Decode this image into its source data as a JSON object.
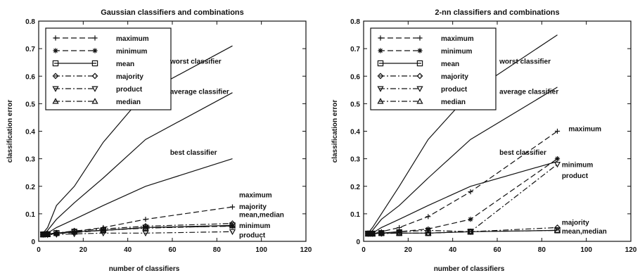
{
  "chart_data": [
    {
      "type": "line",
      "title": "Gaussian classifiers and combinations",
      "xlabel": "number of classifiers",
      "ylabel": "classification error",
      "xlim": [
        0,
        120
      ],
      "ylim": [
        0,
        0.8
      ],
      "xticks": [
        "0",
        "20",
        "40",
        "60",
        "80",
        "100",
        "120"
      ],
      "yticks": [
        "0",
        "0.1",
        "0.2",
        "0.3",
        "0.4",
        "0.5",
        "0.6",
        "0.7",
        "0.8"
      ],
      "grid": false,
      "legend_position": "top-left",
      "legend": [
        {
          "label": "maximum",
          "marker": "plus",
          "dash": "long"
        },
        {
          "label": "minimum",
          "marker": "star",
          "dash": "long"
        },
        {
          "label": "mean",
          "marker": "square",
          "dash": "solid"
        },
        {
          "label": "majority",
          "marker": "diamond",
          "dash": "dashdot"
        },
        {
          "label": "product",
          "marker": "tri-down",
          "dash": "dashdot"
        },
        {
          "label": "median",
          "marker": "tri-up",
          "dash": "dashdot"
        }
      ],
      "series": [
        {
          "marker": "none",
          "dash": "solid",
          "x": [
            2,
            4,
            8,
            16,
            29,
            48,
            87
          ],
          "y": [
            0.03,
            0.05,
            0.13,
            0.2,
            0.36,
            0.54,
            0.71
          ]
        },
        {
          "marker": "none",
          "dash": "solid",
          "x": [
            2,
            4,
            8,
            16,
            29,
            48,
            87
          ],
          "y": [
            0.025,
            0.04,
            0.08,
            0.14,
            0.23,
            0.37,
            0.54
          ]
        },
        {
          "marker": "none",
          "dash": "solid",
          "x": [
            2,
            4,
            8,
            16,
            29,
            48,
            87
          ],
          "y": [
            0.02,
            0.03,
            0.05,
            0.08,
            0.13,
            0.2,
            0.3
          ]
        },
        {
          "marker": "plus",
          "dash": "long",
          "x": [
            2,
            4,
            8,
            16,
            29,
            48,
            87
          ],
          "y": [
            0.027,
            0.028,
            0.03,
            0.036,
            0.05,
            0.08,
            0.125
          ]
        },
        {
          "marker": "star",
          "dash": "long",
          "x": [
            2,
            4,
            8,
            16,
            29,
            48,
            87
          ],
          "y": [
            0.026,
            0.025,
            0.028,
            0.032,
            0.04,
            0.05,
            0.055
          ]
        },
        {
          "marker": "square",
          "dash": "solid",
          "x": [
            2,
            4,
            8,
            16,
            29,
            48,
            87
          ],
          "y": [
            0.025,
            0.026,
            0.03,
            0.035,
            0.04,
            0.05,
            0.058
          ]
        },
        {
          "marker": "diamond",
          "dash": "dashdot",
          "x": [
            2,
            4,
            8,
            16,
            29,
            48,
            87
          ],
          "y": [
            0.025,
            0.027,
            0.03,
            0.038,
            0.045,
            0.055,
            0.065
          ]
        },
        {
          "marker": "tri-down",
          "dash": "dashdot",
          "x": [
            2,
            4,
            8,
            16,
            29,
            48,
            87
          ],
          "y": [
            0.025,
            0.024,
            0.025,
            0.027,
            0.03,
            0.03,
            0.035
          ]
        },
        {
          "marker": "tri-up",
          "dash": "dashdot",
          "x": [
            2,
            4,
            8,
            16,
            29,
            48,
            87
          ],
          "y": [
            0.025,
            0.026,
            0.03,
            0.034,
            0.04,
            0.048,
            0.056
          ]
        }
      ],
      "annotations": [
        {
          "text": "worst classifier",
          "x": 59,
          "y": 0.645
        },
        {
          "text": "average classifier",
          "x": 59,
          "y": 0.535
        },
        {
          "text": "best classifier",
          "x": 59,
          "y": 0.315
        },
        {
          "text": "maximum",
          "x": 90,
          "y": 0.16
        },
        {
          "text": "majority",
          "x": 90,
          "y": 0.118
        },
        {
          "text": "mean,median",
          "x": 90,
          "y": 0.088
        },
        {
          "text": "minimum",
          "x": 90,
          "y": 0.048
        },
        {
          "text": "product",
          "x": 90,
          "y": 0.014
        }
      ]
    },
    {
      "type": "line",
      "title": "2-nn classifiers and combinations",
      "xlabel": "number of classifiers",
      "ylabel": "classification error",
      "xlim": [
        0,
        120
      ],
      "ylim": [
        0,
        0.8
      ],
      "xticks": [
        "0",
        "20",
        "40",
        "60",
        "80",
        "100",
        "120"
      ],
      "yticks": [
        "0",
        "0.1",
        "0.2",
        "0.3",
        "0.4",
        "0.5",
        "0.6",
        "0.7",
        "0.8"
      ],
      "grid": false,
      "legend_position": "top-left",
      "legend": [
        {
          "label": "maximum",
          "marker": "plus",
          "dash": "long"
        },
        {
          "label": "minimum",
          "marker": "star",
          "dash": "long"
        },
        {
          "label": "mean",
          "marker": "square",
          "dash": "solid"
        },
        {
          "label": "majority",
          "marker": "diamond",
          "dash": "dashdot"
        },
        {
          "label": "product",
          "marker": "tri-down",
          "dash": "dashdot"
        },
        {
          "label": "median",
          "marker": "tri-up",
          "dash": "dashdot"
        }
      ],
      "series": [
        {
          "marker": "none",
          "dash": "solid",
          "x": [
            2,
            4,
            8,
            16,
            29,
            48,
            87
          ],
          "y": [
            0.03,
            0.05,
            0.1,
            0.2,
            0.37,
            0.54,
            0.75
          ]
        },
        {
          "marker": "none",
          "dash": "solid",
          "x": [
            2,
            4,
            8,
            16,
            29,
            48,
            87
          ],
          "y": [
            0.025,
            0.04,
            0.08,
            0.13,
            0.23,
            0.37,
            0.56
          ]
        },
        {
          "marker": "none",
          "dash": "solid",
          "x": [
            2,
            4,
            8,
            16,
            29,
            48,
            87
          ],
          "y": [
            0.02,
            0.03,
            0.05,
            0.08,
            0.13,
            0.2,
            0.29
          ]
        },
        {
          "marker": "plus",
          "dash": "long",
          "x": [
            2,
            4,
            8,
            16,
            29,
            48,
            87
          ],
          "y": [
            0.03,
            0.03,
            0.035,
            0.05,
            0.09,
            0.18,
            0.4
          ]
        },
        {
          "marker": "star",
          "dash": "long",
          "x": [
            2,
            4,
            8,
            16,
            29,
            48,
            87
          ],
          "y": [
            0.028,
            0.028,
            0.03,
            0.035,
            0.045,
            0.08,
            0.3
          ]
        },
        {
          "marker": "square",
          "dash": "solid",
          "x": [
            2,
            4,
            8,
            16,
            29,
            48,
            87
          ],
          "y": [
            0.028,
            0.028,
            0.03,
            0.03,
            0.03,
            0.035,
            0.04
          ]
        },
        {
          "marker": "diamond",
          "dash": "dashdot",
          "x": [
            2,
            4,
            8,
            16,
            29,
            48,
            87
          ],
          "y": [
            0.028,
            0.028,
            0.028,
            0.03,
            0.03,
            0.035,
            0.05
          ]
        },
        {
          "marker": "tri-down",
          "dash": "dashdot",
          "x": [
            2,
            4,
            8,
            16,
            29,
            48,
            87
          ],
          "y": [
            0.028,
            0.028,
            0.03,
            0.035,
            0.04,
            0.035,
            0.28
          ]
        },
        {
          "marker": "tri-up",
          "dash": "dashdot",
          "x": [
            2,
            4,
            8,
            16,
            29,
            48,
            87
          ],
          "y": [
            0.028,
            0.028,
            0.03,
            0.03,
            0.03,
            0.035,
            0.04
          ]
        }
      ],
      "annotations": [
        {
          "text": "worst classifier",
          "x": 61,
          "y": 0.645
        },
        {
          "text": "average classifier",
          "x": 61,
          "y": 0.535
        },
        {
          "text": "maximum",
          "x": 92,
          "y": 0.4
        },
        {
          "text": "best classifier",
          "x": 61,
          "y": 0.315
        },
        {
          "text": "minimum",
          "x": 89,
          "y": 0.27
        },
        {
          "text": "product",
          "x": 89,
          "y": 0.23
        },
        {
          "text": "majority",
          "x": 89,
          "y": 0.06
        },
        {
          "text": "mean,median",
          "x": 89,
          "y": 0.028
        }
      ]
    }
  ]
}
